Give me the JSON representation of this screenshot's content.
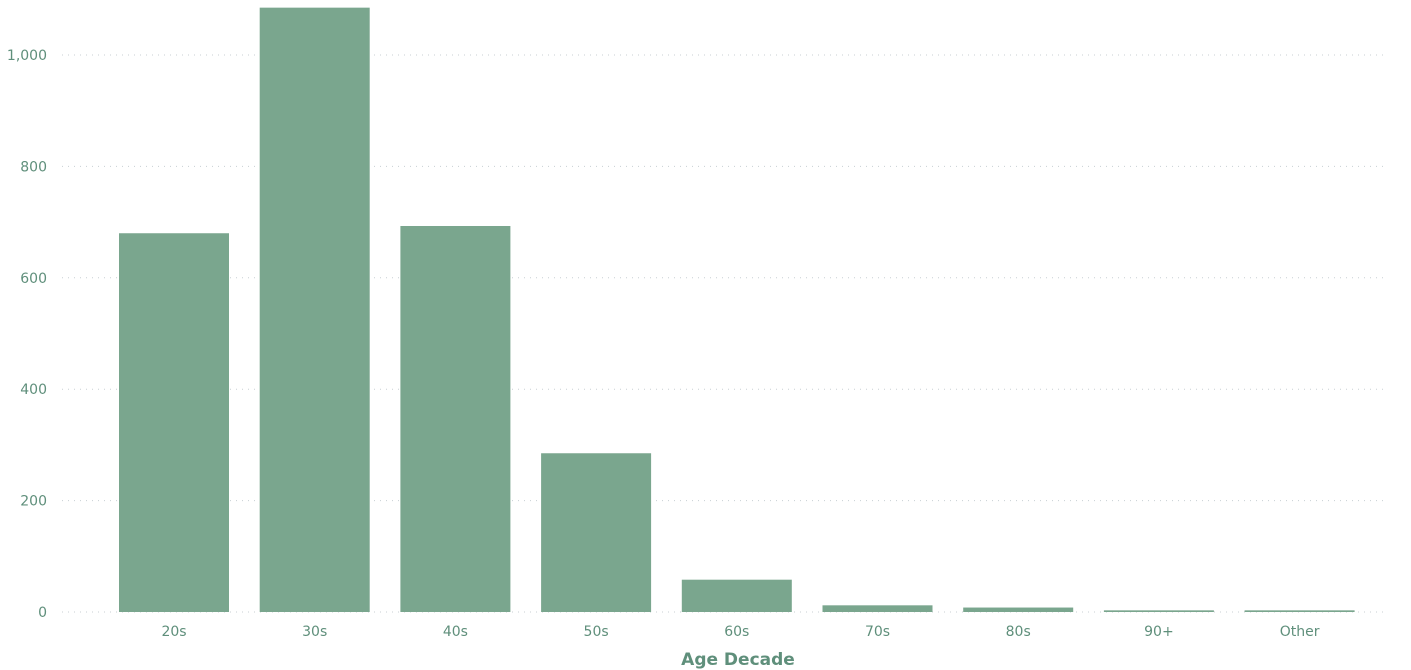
{
  "chart_data": {
    "type": "bar",
    "title": "",
    "xlabel": "Age Decade",
    "ylabel": "",
    "categories": [
      "20s",
      "30s",
      "40s",
      "50s",
      "60s",
      "70s",
      "80s",
      "90+",
      "Other"
    ],
    "values": [
      680,
      1085,
      693,
      285,
      58,
      12,
      8,
      3,
      3
    ],
    "ylim": [
      0,
      1000
    ],
    "yticks": [
      0,
      200,
      400,
      600,
      800,
      1000
    ],
    "ytick_labels": [
      "0",
      "200",
      "400",
      "600",
      "800",
      "1,000"
    ],
    "grid": true,
    "legend": "none",
    "colors": {
      "bar": "#7aa68e",
      "tick_text": "#5f8f7b",
      "axis_title": "#5f8f7b",
      "grid": "#c8cfd3"
    }
  }
}
